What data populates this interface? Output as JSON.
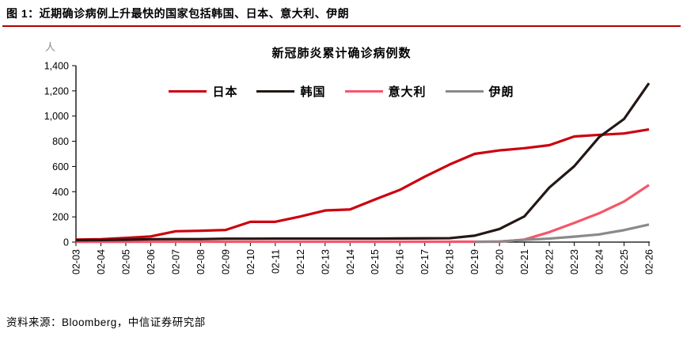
{
  "header": {
    "title": "图 1：近期确诊病例上升最快的国家包括韩国、日本、意大利、伊朗"
  },
  "footer": {
    "source": "资料来源：Bloomberg，中信证券研究部"
  },
  "colors": {
    "header_rule": "#B00000",
    "axis": "#000000",
    "unit_label_gray": "#8a8a8a"
  },
  "chart_data": {
    "type": "line",
    "title": "新冠肺炎累计确诊病例数",
    "unit_label": "人",
    "xlabel": "",
    "ylabel": "人",
    "ylim": [
      0,
      1400
    ],
    "yticks": [
      0,
      200,
      400,
      600,
      800,
      1000,
      1200,
      1400
    ],
    "ytick_labels": [
      "0",
      "200",
      "400",
      "600",
      "800",
      "1,000",
      "1,200",
      "1,400"
    ],
    "grid": false,
    "legend_position": "top",
    "x": [
      "02-03",
      "02-04",
      "02-05",
      "02-06",
      "02-07",
      "02-08",
      "02-09",
      "02-10",
      "02-11",
      "02-12",
      "02-13",
      "02-14",
      "02-15",
      "02-16",
      "02-17",
      "02-18",
      "02-19",
      "02-20",
      "02-21",
      "02-22",
      "02-23",
      "02-24",
      "02-25",
      "02-26"
    ],
    "series": [
      {
        "key": "japan",
        "name": "日本",
        "color": "#CC000E",
        "values": [
          20,
          23,
          33,
          45,
          86,
          90,
          96,
          161,
          161,
          203,
          251,
          259,
          338,
          414,
          519,
          616,
          700,
          728,
          745,
          769,
          838,
          851,
          862,
          894
        ]
      },
      {
        "key": "korea",
        "name": "韩国",
        "color": "#231815",
        "values": [
          15,
          16,
          19,
          23,
          24,
          24,
          27,
          27,
          28,
          28,
          28,
          28,
          28,
          29,
          30,
          31,
          51,
          104,
          204,
          433,
          602,
          833,
          977,
          1261
        ]
      },
      {
        "key": "italy",
        "name": "意大利",
        "color": "#F5566A",
        "values": [
          2,
          2,
          2,
          3,
          3,
          3,
          3,
          3,
          3,
          3,
          3,
          3,
          3,
          3,
          3,
          3,
          3,
          3,
          20,
          79,
          152,
          229,
          322,
          453
        ]
      },
      {
        "key": "iran",
        "name": "伊朗",
        "color": "#8A8A8A",
        "values": [
          null,
          null,
          null,
          null,
          null,
          null,
          null,
          null,
          null,
          null,
          null,
          null,
          null,
          null,
          null,
          null,
          2,
          5,
          18,
          28,
          43,
          61,
          95,
          139
        ]
      }
    ]
  }
}
